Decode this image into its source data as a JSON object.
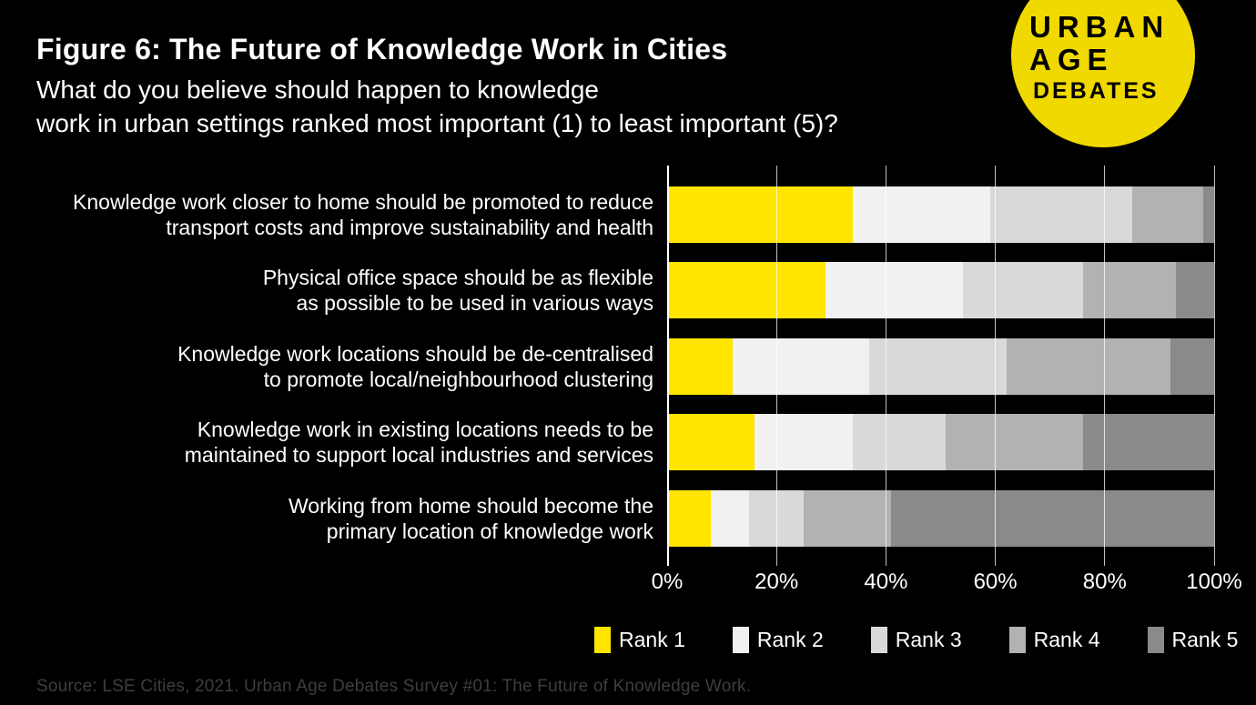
{
  "header": {
    "title": "Figure 6: The Future of Knowledge Work in Cities",
    "subtitle_line1": "What do you believe should happen to knowledge",
    "subtitle_line2": "work in urban settings ranked most important (1) to least important (5)?"
  },
  "logo": {
    "line1": "URBAN",
    "line2": "AGE",
    "line3": "DEBATES",
    "bg_color": "#efd900",
    "text_color": "#000000"
  },
  "chart_data": {
    "type": "bar",
    "orientation": "horizontal",
    "stacked": true,
    "unit": "%",
    "title": "Figure 6: The Future of Knowledge Work in Cities",
    "categories": [
      {
        "lines": [
          "Knowledge work closer to home should be promoted to reduce",
          "transport costs and improve sustainability and health"
        ]
      },
      {
        "lines": [
          "Physical office space should be as flexible",
          "as possible to be used in various ways"
        ]
      },
      {
        "lines": [
          "Knowledge work locations should be de-centralised",
          "to promote local/neighbourhood clustering"
        ]
      },
      {
        "lines": [
          "Knowledge work in existing locations needs to be",
          "maintained to support local industries and services"
        ]
      },
      {
        "lines": [
          "Working from home should become the",
          "primary location of knowledge work"
        ]
      }
    ],
    "series": [
      {
        "name": "Rank 1",
        "color": "#ffe500",
        "values": [
          34,
          29,
          12,
          16,
          8
        ]
      },
      {
        "name": "Rank 2",
        "color": "#f1f1f1",
        "values": [
          25,
          25,
          25,
          18,
          7
        ]
      },
      {
        "name": "Rank 3",
        "color": "#d9d9d9",
        "values": [
          26,
          22,
          25,
          17,
          10
        ]
      },
      {
        "name": "Rank 4",
        "color": "#b2b2b2",
        "values": [
          13,
          17,
          30,
          25,
          16
        ]
      },
      {
        "name": "Rank 5",
        "color": "#8a8a8a",
        "values": [
          2,
          7,
          8,
          24,
          59
        ]
      }
    ],
    "x_ticks": [
      "0%",
      "20%",
      "40%",
      "60%",
      "80%",
      "100%"
    ],
    "xlim": [
      0,
      100
    ],
    "grid": true,
    "legend_position": "bottom",
    "background_color": "#000000",
    "text_color": "#ffffff"
  },
  "source": "Source: LSE Cities, 2021. Urban Age Debates Survey #01: The Future of Knowledge Work."
}
